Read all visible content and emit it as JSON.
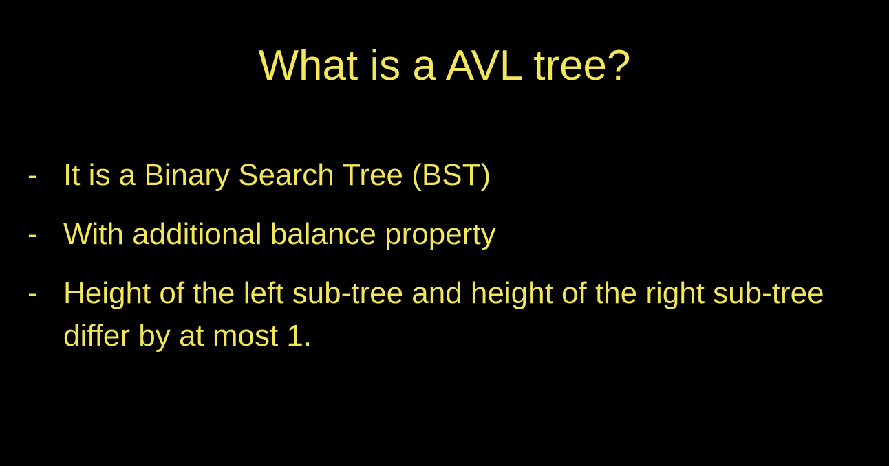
{
  "slide": {
    "title": "What is a AVL tree?",
    "bullet_marker": "-",
    "bullets": [
      "It is a Binary Search Tree (BST)",
      "With additional balance property",
      "Height of the left sub-tree and height of the right sub-tree differ by at most 1."
    ],
    "text_color": "#f2e75a",
    "background_color": "#000000"
  }
}
